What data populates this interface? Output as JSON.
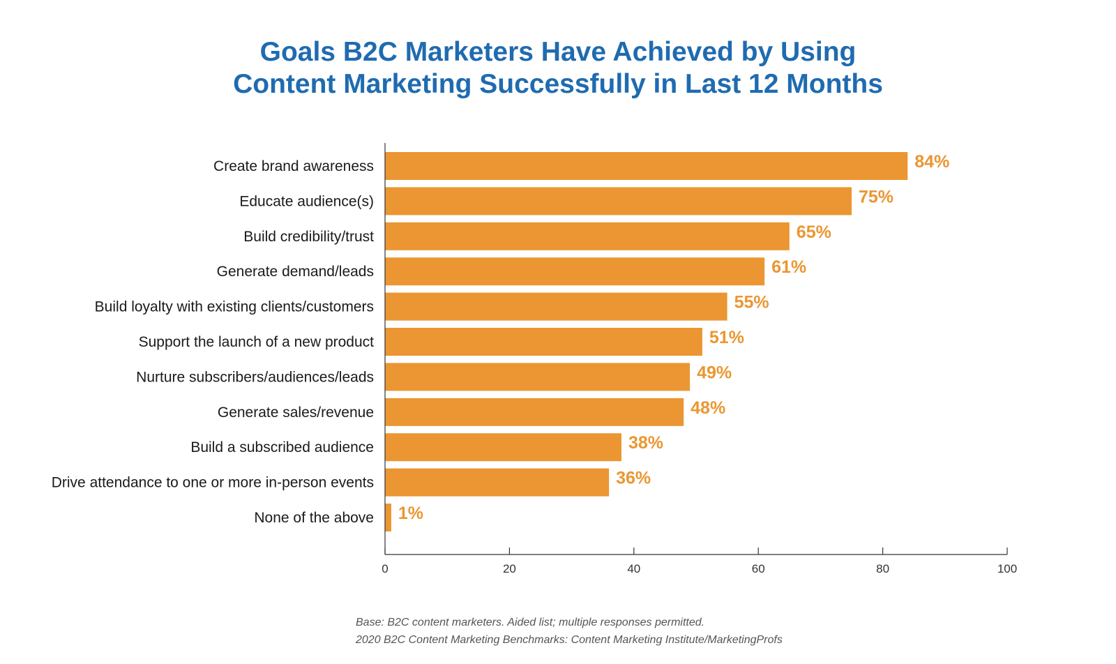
{
  "chart_data": {
    "type": "bar",
    "orientation": "horizontal",
    "title_line1": "Goals B2C Marketers Have Achieved by Using",
    "title_line2": "Content Marketing Successfully in Last 12 Months",
    "categories": [
      "Create brand awareness",
      "Educate audience(s)",
      "Build credibility/trust",
      "Generate demand/leads",
      "Build loyalty with existing clients/customers",
      "Support the launch of a new product",
      "Nurture subscribers/audiences/leads",
      "Generate sales/revenue",
      "Build a subscribed audience",
      "Drive attendance to one or more in-person events",
      "None of the above"
    ],
    "values": [
      84,
      75,
      65,
      61,
      55,
      51,
      49,
      48,
      38,
      36,
      1
    ],
    "value_labels": [
      "84%",
      "75%",
      "65%",
      "61%",
      "55%",
      "51%",
      "49%",
      "48%",
      "38%",
      "36%",
      "1%"
    ],
    "xlim": [
      0,
      100
    ],
    "xticks": [
      0,
      20,
      40,
      60,
      80,
      100
    ],
    "grid": false,
    "bar_color": "#eb9632",
    "label_color": "#eb9632",
    "title_color": "#1f6bb0"
  },
  "footnote": {
    "line1": "Base: B2C content marketers. Aided list; multiple responses permitted.",
    "line2": "2020 B2C Content Marketing Benchmarks: Content Marketing Institute/MarketingProfs"
  }
}
